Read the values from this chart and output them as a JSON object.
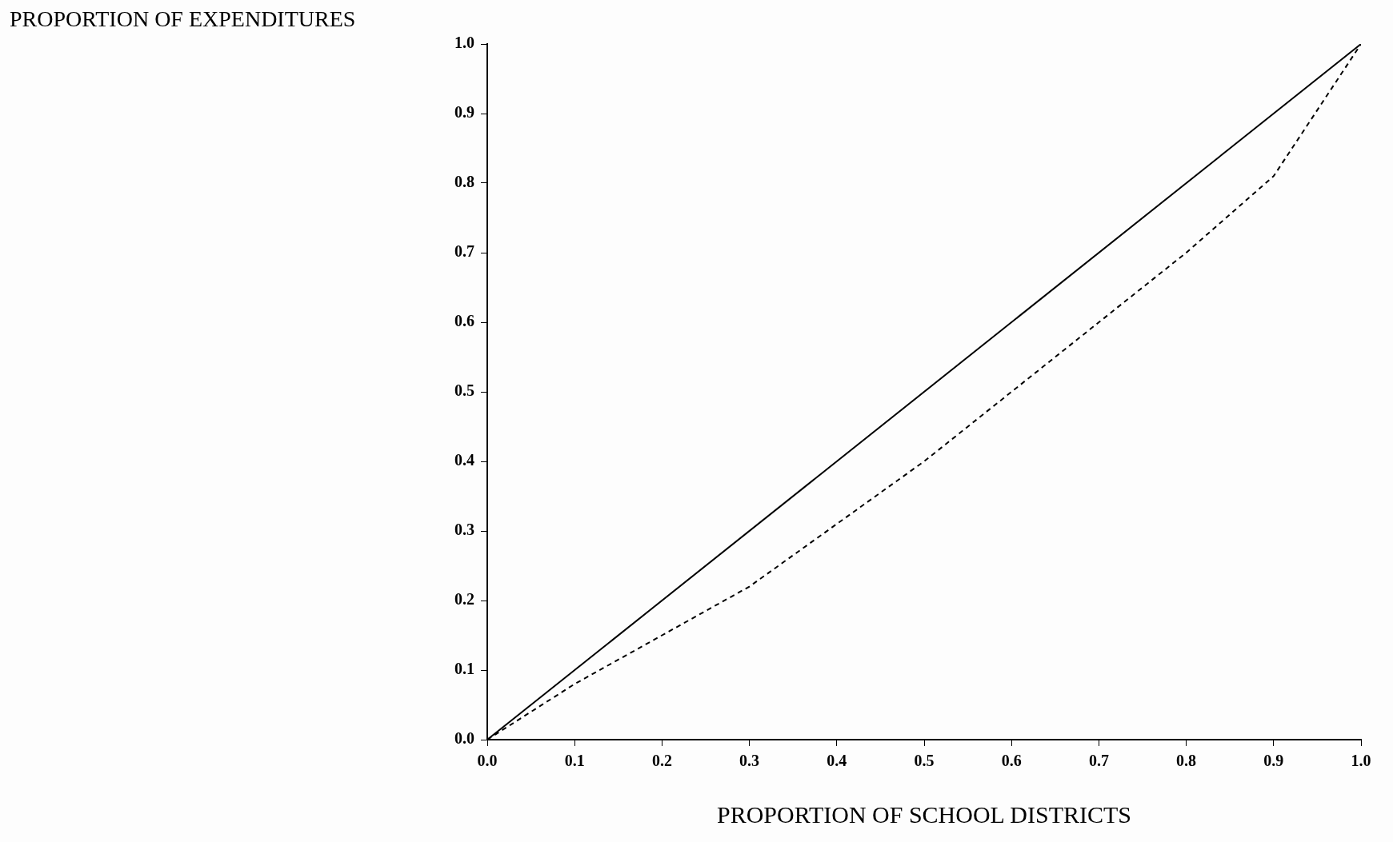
{
  "chart_data": {
    "type": "line",
    "xlabel": "PROPORTION OF SCHOOL DISTRICTS",
    "ylabel": "PROPORTION OF EXPENDITURES",
    "x": [
      0,
      0.1,
      0.2,
      0.3,
      0.4,
      0.5,
      0.6,
      0.7,
      0.8,
      0.9,
      1.0
    ],
    "series": [
      {
        "color": "#000000",
        "line_style": "solid",
        "x": [
          0,
          1.0
        ],
        "values": [
          0,
          1.0
        ]
      },
      {
        "color": "#000000",
        "line_style": "dashed",
        "values": [
          0,
          0.08,
          0.15,
          0.22,
          0.31,
          0.4,
          0.5,
          0.6,
          0.7,
          0.81,
          1.0
        ]
      }
    ],
    "xlim": [
      0,
      1.0
    ],
    "xticks": [
      {
        "value": 0,
        "label": "0.0"
      },
      0.1,
      0.2,
      0.3,
      0.4,
      0.5,
      0.6,
      0.7,
      0.8,
      0.9,
      {
        "value": 1,
        "label": "1.0"
      }
    ],
    "ylim": [
      0,
      1.0
    ],
    "yticks": [
      {
        "value": 0,
        "label": "0.0"
      },
      0.1,
      0.2,
      0.3,
      0.4,
      0.5,
      0.6,
      0.7,
      0.8,
      0.9,
      {
        "value": 1,
        "label": "1.0"
      }
    ],
    "grid": false,
    "legend": false,
    "marker": "none"
  }
}
